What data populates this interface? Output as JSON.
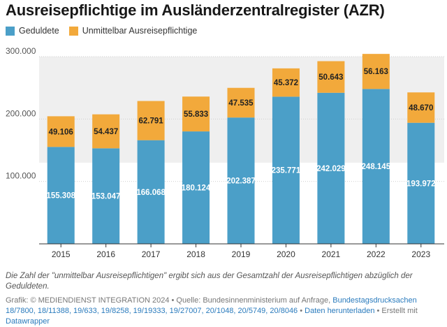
{
  "title": "Ausreisepflichtige im Ausländerzentralregister (AZR)",
  "colors": {
    "geduldete": "#4b9fc8",
    "unmittelbar": "#f2a93b",
    "shade": "#efefef"
  },
  "legend": [
    {
      "label": "Geduldete",
      "color": "#4b9fc8"
    },
    {
      "label": "Unmittelbar Ausreisepflichtige",
      "color": "#f2a93b"
    }
  ],
  "note": "Die Zahl der \"unmittelbar Ausreisepflichtigen\" ergibt sich aus der Gesamtzahl der Ausreisepflichtigen abzüglich der Geduldeten.",
  "footer": {
    "prefix": "Grafik: © MEDIENDIENST INTEGRATION 2024 • Quelle: Bundesinnenministerium auf Anfrage, ",
    "source_link": "Bundestagsdrucksachen 18/7800, 18/11388, 19/633, 19/8258, 19/19333, 19/27007, 20/1048, 20/5749, 20/8046",
    "sep1": " • ",
    "download_link": "Daten herunterladen",
    "sep2": " • Erstellt mit ",
    "tool_link": "Datawrapper"
  },
  "chart_data": {
    "type": "bar",
    "stacked": true,
    "categories": [
      "2015",
      "2016",
      "2017",
      "2018",
      "2019",
      "2020",
      "2021",
      "2022",
      "2023"
    ],
    "series": [
      {
        "name": "Geduldete",
        "values": [
          155308,
          153047,
          166068,
          180124,
          202387,
          235771,
          242029,
          248145,
          193972
        ],
        "labels": [
          "155.308",
          "153.047",
          "166.068",
          "180.124",
          "202.387",
          "235.771",
          "242.029",
          "248.145",
          "193.972"
        ]
      },
      {
        "name": "Unmittelbar Ausreisepflichtige",
        "values": [
          49106,
          54437,
          62791,
          55833,
          47535,
          45372,
          50643,
          56163,
          48670
        ],
        "labels": [
          "49.106",
          "54.437",
          "62.791",
          "55.833",
          "47.535",
          "45.372",
          "50.643",
          "56.163",
          "48.670"
        ]
      }
    ],
    "yticks": [
      100000,
      200000,
      300000
    ],
    "yticklabels": [
      "100.000",
      "200.000",
      "300.000"
    ],
    "ylim": [
      0,
      300000
    ],
    "shaded_band": [
      130000,
      300000
    ],
    "grid": true
  }
}
